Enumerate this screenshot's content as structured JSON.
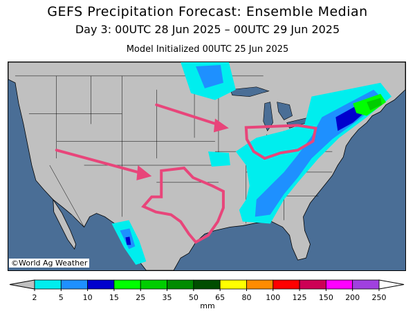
{
  "header": {
    "title": "GEFS Precipitation Forecast: Ensemble Median",
    "valid_period": "Day 3: 00UTC 28 Jun 2025 – 00UTC 29 Jun 2025",
    "init": "Model Initialized 00UTC 25 Jun 2025"
  },
  "map": {
    "credit": "©World Ag Weather",
    "colors": {
      "land": "#c0c0c0",
      "water": "#4a6e96",
      "highlight_outline": "#e8457a",
      "arrow": "#e8457a"
    },
    "annotations": [
      {
        "type": "arrow",
        "meaning": "northwest flow toward Upper Midwest"
      },
      {
        "type": "arrow",
        "meaning": "southwest flow toward Texas"
      },
      {
        "type": "outline",
        "region": "Upper Midwest / Great Lakes"
      },
      {
        "type": "outline",
        "region": "Texas"
      }
    ]
  },
  "legend": {
    "units": "mm",
    "below_color": "#c0c0c0",
    "above_color": "#ffffff",
    "colors": [
      "#00eeee",
      "#1e90ff",
      "#0000cd",
      "#00ff00",
      "#00cd00",
      "#008b00",
      "#004d00",
      "#ffff00",
      "#ff8c00",
      "#ff0000",
      "#cd0055",
      "#ff00ff",
      "#a040e0"
    ],
    "ticks": [
      "2",
      "5",
      "10",
      "15",
      "25",
      "35",
      "50",
      "65",
      "80",
      "100",
      "125",
      "150",
      "200",
      "250"
    ]
  }
}
